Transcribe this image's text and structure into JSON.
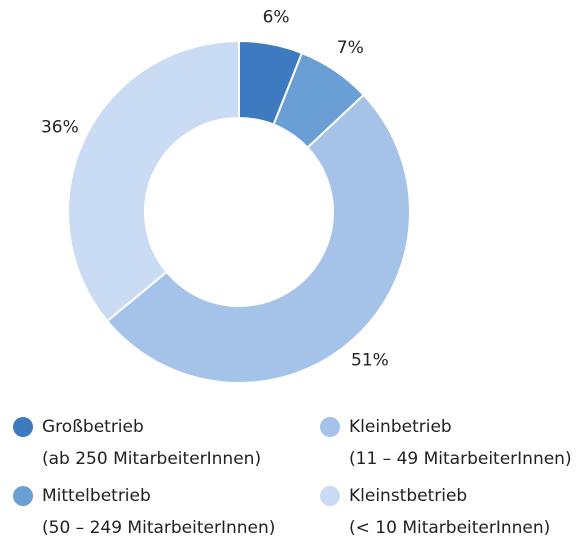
{
  "chart_data": {
    "type": "pie",
    "categories": [
      "Großbetrieb",
      "Mittelbetrieb",
      "Kleinbetrieb",
      "Kleinstbetrieb"
    ],
    "descriptions": [
      "(ab 250 MitarbeiterInnen)",
      "(50 – 249 MitarbeiterInnen)",
      "(11 – 49 MitarbeiterInnen)",
      "(< 10 MitarbeiterInnen)"
    ],
    "values": [
      6,
      7,
      51,
      36
    ],
    "value_labels": [
      "6%",
      "7%",
      "51%",
      "36%"
    ],
    "colors": [
      "#3d7abf",
      "#6a9fd6",
      "#a5c3e8",
      "#c9dcf3"
    ]
  }
}
